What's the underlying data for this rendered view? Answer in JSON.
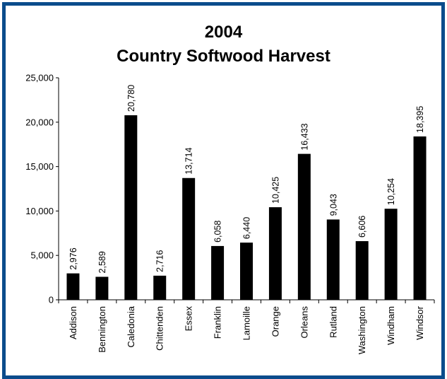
{
  "chart_data": {
    "type": "bar",
    "title": "2004",
    "subtitle": "Country Softwood Harvest",
    "categories": [
      "Addison",
      "Bennington",
      "Caledonia",
      "Chittenden",
      "Essex",
      "Franklin",
      "Lamoille",
      "Orange",
      "Orleans",
      "Rutland",
      "Washington",
      "Windham",
      "Windsor"
    ],
    "values": [
      2976,
      2589,
      20780,
      2716,
      13714,
      6058,
      6440,
      10425,
      16433,
      9043,
      6606,
      10254,
      18395
    ],
    "data_labels": [
      "2,976",
      "2,589",
      "20,780",
      "2,716",
      "13,714",
      "6,058",
      "6,440",
      "10,425",
      "16,433",
      "9,043",
      "6,606",
      "10,254",
      "18,395"
    ],
    "yticks": [
      "0",
      "5,000",
      "10,000",
      "15,000",
      "20,000",
      "25,000"
    ],
    "ylim": [
      0,
      25000
    ],
    "xlabel": "",
    "ylabel": "",
    "grid": false,
    "bar_color": "#000000",
    "frame_color": "#0b4c8c"
  }
}
